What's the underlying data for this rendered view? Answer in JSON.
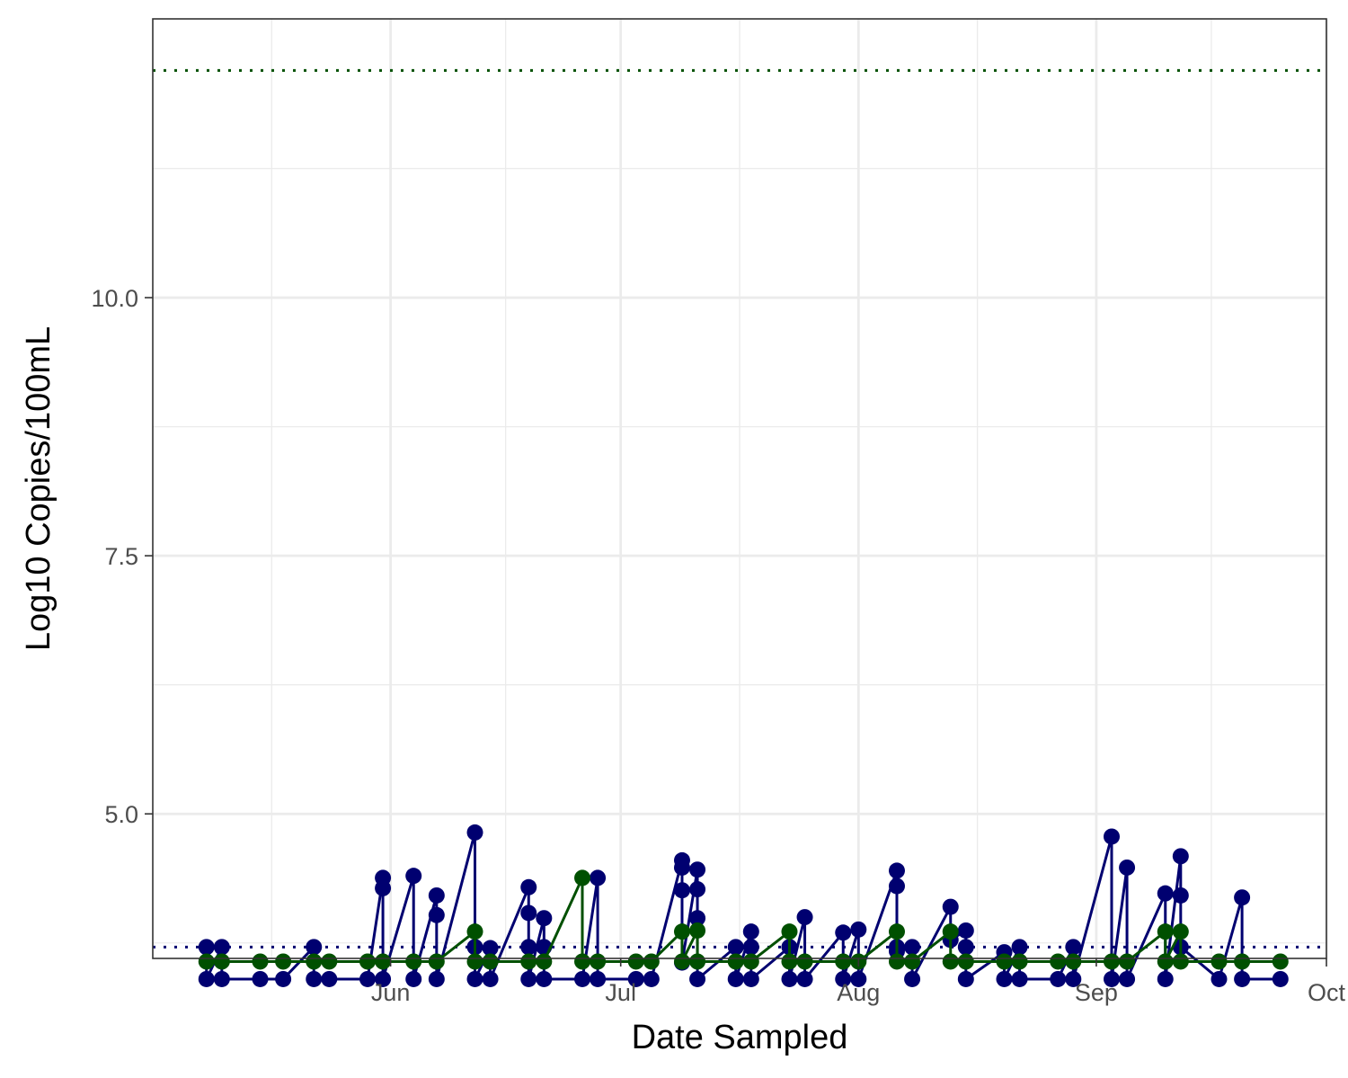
{
  "chart_data": {
    "type": "line",
    "title": "",
    "xlabel": "Date Sampled",
    "ylabel": "Log10 Copies/100mL",
    "xlim": [
      "2025-05-01",
      "2025-10-01"
    ],
    "ylim": [
      3.6,
      12.7
    ],
    "x_ticks": [
      {
        "date": "2025-06-01",
        "label": "Jun"
      },
      {
        "date": "2025-07-01",
        "label": "Jul"
      },
      {
        "date": "2025-08-01",
        "label": "Aug"
      },
      {
        "date": "2025-09-01",
        "label": "Sep"
      },
      {
        "date": "2025-10-01",
        "label": "Oct"
      }
    ],
    "y_ticks": [
      {
        "value": 5.0,
        "label": "5.0"
      },
      {
        "value": 7.5,
        "label": "7.5"
      },
      {
        "value": 10.0,
        "label": "10.0"
      }
    ],
    "grid": true,
    "legend": "none",
    "reference_lines": [
      {
        "y": 12.2,
        "color": "#005000",
        "style": "dotted"
      },
      {
        "y": 3.71,
        "color": "#000070",
        "style": "dotted"
      }
    ],
    "series": [
      {
        "color": "#000070",
        "points": [
          [
            "2025-05-08",
            3.71
          ],
          [
            "2025-05-08",
            3.4
          ],
          [
            "2025-05-10",
            3.71
          ],
          [
            "2025-05-10",
            3.4
          ],
          [
            "2025-05-15",
            3.4
          ],
          [
            "2025-05-18",
            3.4
          ],
          [
            "2025-05-22",
            3.71
          ],
          [
            "2025-05-22",
            3.4
          ],
          [
            "2025-05-24",
            3.4
          ],
          [
            "2025-05-29",
            3.4
          ],
          [
            "2025-05-31",
            4.38
          ],
          [
            "2025-05-31",
            4.28
          ],
          [
            "2025-05-31",
            3.4
          ],
          [
            "2025-06-04",
            4.4
          ],
          [
            "2025-06-04",
            3.4
          ],
          [
            "2025-06-07",
            4.21
          ],
          [
            "2025-06-07",
            4.02
          ],
          [
            "2025-06-07",
            3.4
          ],
          [
            "2025-06-12",
            4.82
          ],
          [
            "2025-06-12",
            3.71
          ],
          [
            "2025-06-12",
            3.4
          ],
          [
            "2025-06-14",
            3.7
          ],
          [
            "2025-06-14",
            3.4
          ],
          [
            "2025-06-19",
            4.29
          ],
          [
            "2025-06-19",
            4.04
          ],
          [
            "2025-06-19",
            3.71
          ],
          [
            "2025-06-19",
            3.4
          ],
          [
            "2025-06-21",
            3.99
          ],
          [
            "2025-06-21",
            3.71
          ],
          [
            "2025-06-21",
            3.4
          ],
          [
            "2025-06-26",
            3.4
          ],
          [
            "2025-06-28",
            4.38
          ],
          [
            "2025-06-28",
            3.4
          ],
          [
            "2025-07-03",
            3.4
          ],
          [
            "2025-07-05",
            3.4
          ],
          [
            "2025-07-09",
            4.55
          ],
          [
            "2025-07-09",
            4.48
          ],
          [
            "2025-07-09",
            4.26
          ],
          [
            "2025-07-09",
            3.56
          ],
          [
            "2025-07-11",
            4.46
          ],
          [
            "2025-07-11",
            4.27
          ],
          [
            "2025-07-11",
            3.99
          ],
          [
            "2025-07-11",
            3.4
          ],
          [
            "2025-07-16",
            3.71
          ],
          [
            "2025-07-16",
            3.4
          ],
          [
            "2025-07-18",
            3.86
          ],
          [
            "2025-07-18",
            3.71
          ],
          [
            "2025-07-18",
            3.4
          ],
          [
            "2025-07-23",
            3.71
          ],
          [
            "2025-07-23",
            3.4
          ],
          [
            "2025-07-25",
            4.0
          ],
          [
            "2025-07-25",
            3.4
          ],
          [
            "2025-07-30",
            3.85
          ],
          [
            "2025-07-30",
            3.4
          ],
          [
            "2025-08-01",
            3.88
          ],
          [
            "2025-08-01",
            3.4
          ],
          [
            "2025-08-06",
            4.45
          ],
          [
            "2025-08-06",
            4.3
          ],
          [
            "2025-08-06",
            3.71
          ],
          [
            "2025-08-06",
            3.67
          ],
          [
            "2025-08-08",
            3.71
          ],
          [
            "2025-08-08",
            3.4
          ],
          [
            "2025-08-13",
            4.1
          ],
          [
            "2025-08-13",
            3.78
          ],
          [
            "2025-08-15",
            3.87
          ],
          [
            "2025-08-15",
            3.71
          ],
          [
            "2025-08-15",
            3.4
          ],
          [
            "2025-08-20",
            3.66
          ],
          [
            "2025-08-20",
            3.4
          ],
          [
            "2025-08-22",
            3.71
          ],
          [
            "2025-08-22",
            3.4
          ],
          [
            "2025-08-27",
            3.4
          ],
          [
            "2025-08-29",
            3.71
          ],
          [
            "2025-08-29",
            3.4
          ],
          [
            "2025-09-03",
            4.78
          ],
          [
            "2025-09-03",
            3.4
          ],
          [
            "2025-09-05",
            4.48
          ],
          [
            "2025-09-05",
            3.4
          ],
          [
            "2025-09-10",
            4.23
          ],
          [
            "2025-09-10",
            3.4
          ],
          [
            "2025-09-12",
            4.59
          ],
          [
            "2025-09-12",
            4.21
          ],
          [
            "2025-09-12",
            3.71
          ],
          [
            "2025-09-17",
            3.4
          ],
          [
            "2025-09-20",
            4.19
          ],
          [
            "2025-09-20",
            3.4
          ],
          [
            "2025-09-25",
            3.4
          ]
        ]
      },
      {
        "color": "#005000",
        "points": [
          [
            "2025-05-08",
            3.57
          ],
          [
            "2025-05-10",
            3.57
          ],
          [
            "2025-05-15",
            3.57
          ],
          [
            "2025-05-18",
            3.57
          ],
          [
            "2025-05-22",
            3.57
          ],
          [
            "2025-05-24",
            3.57
          ],
          [
            "2025-05-29",
            3.57
          ],
          [
            "2025-05-31",
            3.57
          ],
          [
            "2025-06-04",
            3.57
          ],
          [
            "2025-06-07",
            3.57
          ],
          [
            "2025-06-12",
            3.86
          ],
          [
            "2025-06-12",
            3.57
          ],
          [
            "2025-06-14",
            3.57
          ],
          [
            "2025-06-19",
            3.57
          ],
          [
            "2025-06-21",
            3.57
          ],
          [
            "2025-06-26",
            4.38
          ],
          [
            "2025-06-26",
            3.57
          ],
          [
            "2025-06-28",
            3.57
          ],
          [
            "2025-07-03",
            3.57
          ],
          [
            "2025-07-05",
            3.57
          ],
          [
            "2025-07-09",
            3.86
          ],
          [
            "2025-07-09",
            3.57
          ],
          [
            "2025-07-11",
            3.87
          ],
          [
            "2025-07-11",
            3.57
          ],
          [
            "2025-07-16",
            3.57
          ],
          [
            "2025-07-18",
            3.57
          ],
          [
            "2025-07-23",
            3.86
          ],
          [
            "2025-07-23",
            3.57
          ],
          [
            "2025-07-25",
            3.57
          ],
          [
            "2025-07-30",
            3.57
          ],
          [
            "2025-08-01",
            3.57
          ],
          [
            "2025-08-06",
            3.86
          ],
          [
            "2025-08-06",
            3.57
          ],
          [
            "2025-08-08",
            3.57
          ],
          [
            "2025-08-13",
            3.86
          ],
          [
            "2025-08-13",
            3.57
          ],
          [
            "2025-08-15",
            3.57
          ],
          [
            "2025-08-20",
            3.57
          ],
          [
            "2025-08-22",
            3.57
          ],
          [
            "2025-08-27",
            3.57
          ],
          [
            "2025-08-29",
            3.57
          ],
          [
            "2025-09-03",
            3.57
          ],
          [
            "2025-09-05",
            3.57
          ],
          [
            "2025-09-10",
            3.86
          ],
          [
            "2025-09-10",
            3.57
          ],
          [
            "2025-09-12",
            3.86
          ],
          [
            "2025-09-12",
            3.57
          ],
          [
            "2025-09-17",
            3.57
          ],
          [
            "2025-09-20",
            3.57
          ],
          [
            "2025-09-25",
            3.57
          ]
        ]
      }
    ]
  }
}
